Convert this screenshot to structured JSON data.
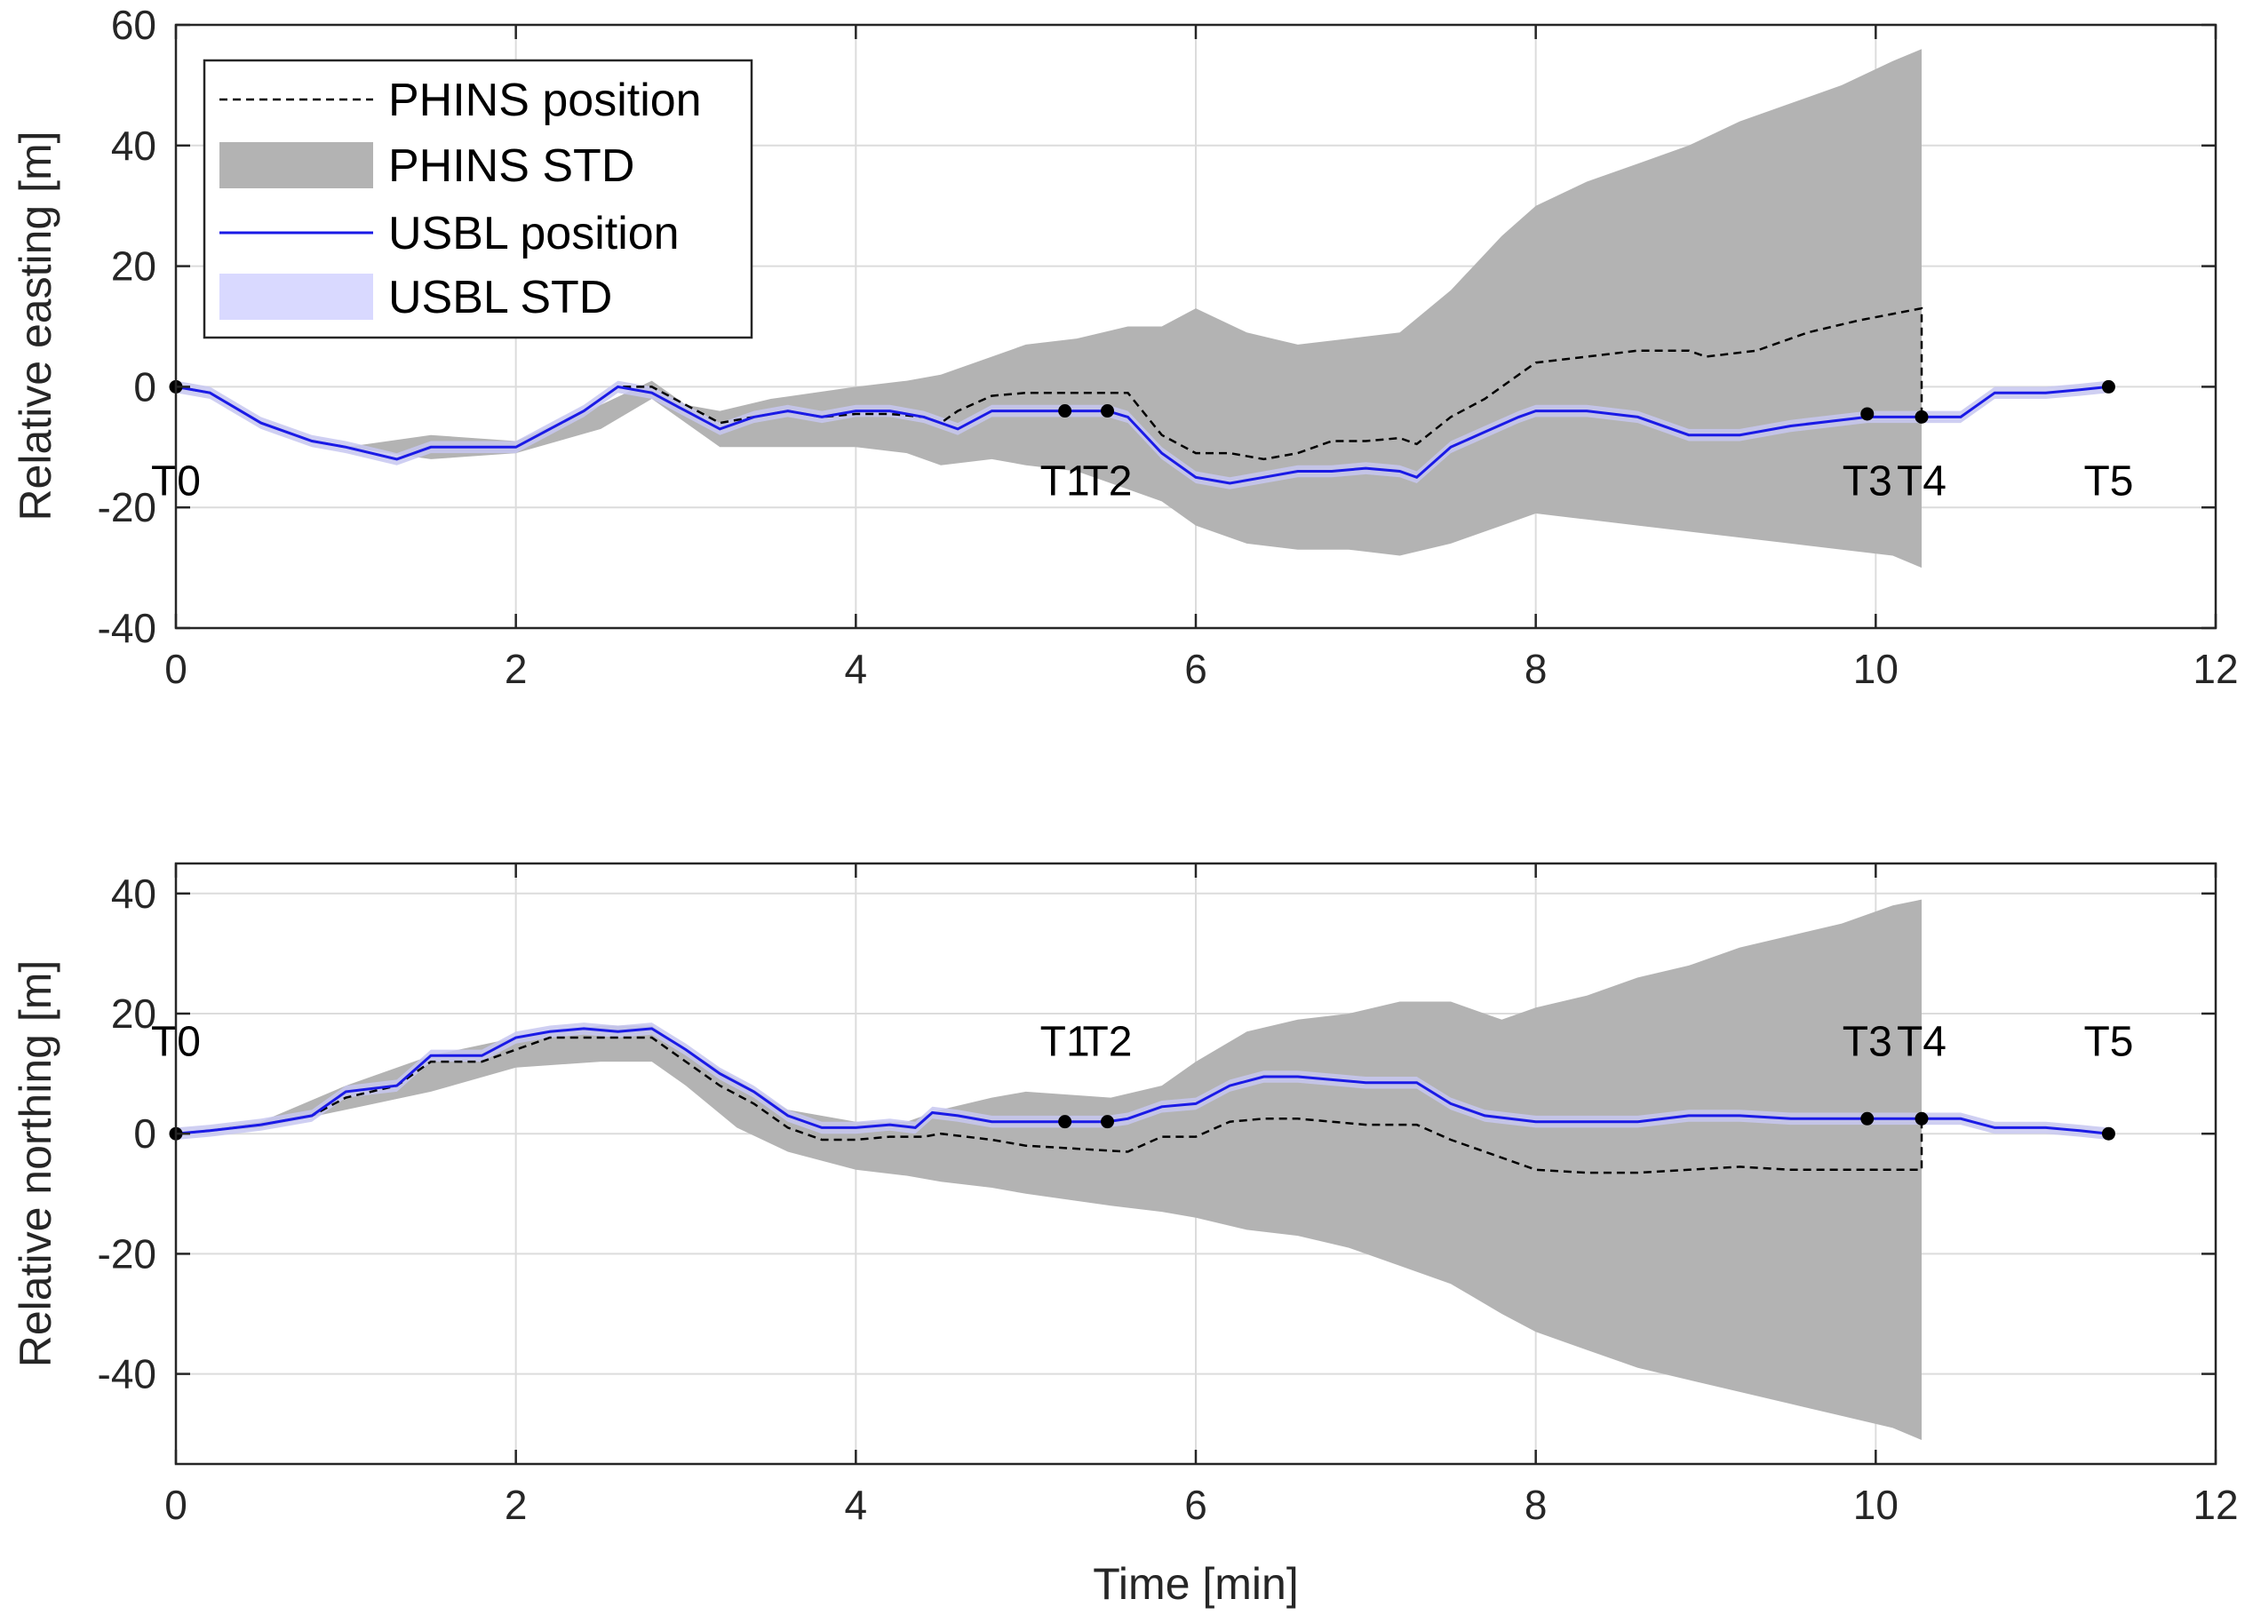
{
  "chart_data": [
    {
      "type": "line",
      "id": "easting",
      "ylabel": "Relative easting [m]",
      "xlabel": "",
      "xlim": [
        0,
        12
      ],
      "ylim": [
        -40,
        60
      ],
      "xticks": [
        0,
        2,
        4,
        6,
        8,
        10,
        12
      ],
      "yticks": [
        -40,
        -20,
        0,
        20,
        40,
        60
      ],
      "grid": true,
      "legend": {
        "position": "top-left",
        "entries": [
          {
            "label": "PHINS position",
            "style": "dashed-line",
            "color": "#000000"
          },
          {
            "label": "PHINS STD",
            "style": "band",
            "color": "#b3b3b3"
          },
          {
            "label": "USBL position",
            "style": "line",
            "color": "#1a1ae6"
          },
          {
            "label": "USBL STD",
            "style": "band",
            "color": "#d9d9ff"
          }
        ]
      },
      "series": [
        {
          "name": "PHINS position",
          "x": [
            0,
            0.2,
            0.5,
            0.8,
            1.0,
            1.3,
            1.5,
            1.8,
            2.0,
            2.2,
            2.4,
            2.6,
            2.8,
            3.0,
            3.2,
            3.4,
            3.6,
            3.8,
            4.0,
            4.2,
            4.4,
            4.5,
            4.6,
            4.8,
            5.0,
            5.2,
            5.4,
            5.6,
            5.8,
            6.0,
            6.2,
            6.4,
            6.6,
            6.8,
            7.0,
            7.2,
            7.3,
            7.5,
            7.7,
            7.9,
            8.0,
            8.3,
            8.6,
            8.9,
            9.0,
            9.3,
            9.6,
            9.9,
            10.27,
            10.27
          ],
          "y": [
            0,
            -1,
            -6,
            -9,
            -10,
            -12,
            -10,
            -10,
            -10,
            -7,
            -4,
            0,
            0,
            -3,
            -6,
            -5,
            -4,
            -5,
            -4.5,
            -4.5,
            -5,
            -6,
            -4,
            -1.5,
            -1,
            -1,
            -1,
            -1,
            -8,
            -11,
            -11,
            -12,
            -11,
            -9,
            -9,
            -8.5,
            -9.5,
            -5,
            -2,
            2,
            4,
            5,
            6,
            6,
            5,
            6,
            9,
            11,
            13,
            -5
          ]
        },
        {
          "name": "PHINS STD",
          "x": [
            0,
            0.5,
            1.0,
            1.5,
            2.0,
            2.5,
            2.8,
            3.0,
            3.2,
            3.5,
            4.0,
            4.3,
            4.5,
            4.8,
            5.0,
            5.3,
            5.6,
            5.8,
            6.0,
            6.3,
            6.6,
            6.9,
            7.2,
            7.5,
            7.8,
            8.0,
            8.3,
            8.6,
            8.9,
            9.2,
            9.5,
            9.8,
            10.1,
            10.27
          ],
          "lower": [
            0,
            -6,
            -10,
            -12,
            -11,
            -7,
            -2,
            -6,
            -10,
            -10,
            -10,
            -11,
            -13,
            -12,
            -13,
            -14,
            -17,
            -19,
            -23,
            -26,
            -27,
            -27,
            -28,
            -26,
            -23,
            -21,
            -22,
            -23,
            -24,
            -25,
            -26,
            -27,
            -28,
            -30
          ],
          "upper": [
            0,
            -6,
            -10,
            -8,
            -9,
            -3,
            1,
            -3,
            -4,
            -2,
            0,
            1,
            2,
            5,
            7,
            8,
            10,
            10,
            13,
            9,
            7,
            8,
            9,
            16,
            25,
            30,
            34,
            37,
            40,
            44,
            47,
            50,
            54,
            56
          ]
        },
        {
          "name": "USBL position",
          "x": [
            0,
            0.2,
            0.5,
            0.8,
            1.0,
            1.3,
            1.5,
            1.8,
            2.0,
            2.2,
            2.4,
            2.6,
            2.8,
            3.0,
            3.2,
            3.4,
            3.6,
            3.8,
            4.0,
            4.2,
            4.4,
            4.6,
            4.8,
            5.0,
            5.23,
            5.48,
            5.6,
            5.8,
            6.0,
            6.2,
            6.4,
            6.6,
            6.8,
            7.0,
            7.2,
            7.3,
            7.5,
            7.7,
            7.9,
            8.0,
            8.3,
            8.6,
            8.9,
            9.2,
            9.5,
            9.8,
            9.95,
            10.27,
            10.5,
            10.7,
            11.0,
            11.2,
            11.37
          ],
          "y": [
            0,
            -1,
            -6,
            -9,
            -10,
            -12,
            -10,
            -10,
            -10,
            -7,
            -4,
            0,
            -1,
            -4,
            -7,
            -5,
            -4,
            -5,
            -4,
            -4,
            -5,
            -7,
            -4,
            -4,
            -4,
            -4,
            -5,
            -11,
            -15,
            -16,
            -15,
            -14,
            -14,
            -13.5,
            -14,
            -15,
            -10,
            -7.5,
            -5,
            -4,
            -4,
            -5,
            -8,
            -8,
            -6.5,
            -5.5,
            -5,
            -5,
            -5,
            -1,
            -1,
            -0.5,
            0
          ]
        },
        {
          "name": "USBL STD",
          "halfwidth": 1.0
        }
      ],
      "events": [
        {
          "label": "T0",
          "x": 0,
          "y": 0
        },
        {
          "label": "T1",
          "x": 5.23,
          "y": -4
        },
        {
          "label": "T2",
          "x": 5.48,
          "y": -4
        },
        {
          "label": "T3",
          "x": 9.95,
          "y": -4.5
        },
        {
          "label": "T4",
          "x": 10.27,
          "y": -5
        },
        {
          "label": "T5",
          "x": 11.37,
          "y": 0
        }
      ],
      "event_label_y": -15.5
    },
    {
      "type": "line",
      "id": "northing",
      "ylabel": "Relative northing [m]",
      "xlabel": "Time [min]",
      "xlim": [
        0,
        12
      ],
      "ylim": [
        -55,
        45
      ],
      "xticks": [
        0,
        2,
        4,
        6,
        8,
        10,
        12
      ],
      "yticks": [
        -40,
        -20,
        0,
        20,
        40
      ],
      "grid": true,
      "series": [
        {
          "name": "PHINS position",
          "x": [
            0,
            0.2,
            0.5,
            0.8,
            1.0,
            1.3,
            1.5,
            1.8,
            2.0,
            2.2,
            2.4,
            2.6,
            2.8,
            3.0,
            3.2,
            3.4,
            3.6,
            3.8,
            4.0,
            4.2,
            4.4,
            4.5,
            4.8,
            5.0,
            5.3,
            5.6,
            5.8,
            6.0,
            6.2,
            6.4,
            6.6,
            6.8,
            7.0,
            7.3,
            7.5,
            7.7,
            8.0,
            8.3,
            8.6,
            8.9,
            9.2,
            9.5,
            9.8,
            10.27,
            10.27
          ],
          "y": [
            0,
            0.5,
            1.5,
            3,
            6,
            8,
            12,
            12,
            14,
            16,
            16,
            16,
            16,
            12,
            8,
            5,
            1,
            -1,
            -1,
            -0.5,
            -0.5,
            0,
            -1,
            -2,
            -2.5,
            -3,
            -0.5,
            -0.5,
            2,
            2.5,
            2.5,
            2,
            1.5,
            1.5,
            -1,
            -3,
            -6,
            -6.5,
            -6.5,
            -6,
            -5.5,
            -6,
            -6,
            -6,
            3
          ]
        },
        {
          "name": "PHINS STD",
          "x": [
            0,
            0.5,
            1.0,
            1.5,
            2.0,
            2.5,
            2.8,
            3.0,
            3.3,
            3.6,
            4.0,
            4.3,
            4.5,
            4.8,
            5.0,
            5.5,
            5.8,
            6.0,
            6.3,
            6.6,
            6.9,
            7.2,
            7.5,
            7.8,
            8.0,
            8.3,
            8.6,
            8.9,
            9.2,
            9.5,
            9.8,
            10.1,
            10.27
          ],
          "lower": [
            0,
            1,
            4,
            7,
            11,
            12,
            12,
            8,
            1,
            -3,
            -6,
            -7,
            -8,
            -9,
            -10,
            -12,
            -13,
            -14,
            -16,
            -17,
            -19,
            -22,
            -25,
            -30,
            -33,
            -36,
            -39,
            -41,
            -43,
            -45,
            -47,
            -49,
            -51
          ],
          "upper": [
            0,
            2,
            8,
            13,
            16,
            18,
            18,
            14,
            9,
            4,
            2,
            2,
            4,
            6,
            7,
            6,
            8,
            12,
            17,
            19,
            20,
            22,
            22,
            19,
            21,
            23,
            26,
            28,
            31,
            33,
            35,
            38,
            39
          ]
        },
        {
          "name": "USBL position",
          "x": [
            0,
            0.2,
            0.5,
            0.8,
            1.0,
            1.3,
            1.5,
            1.8,
            2.0,
            2.2,
            2.4,
            2.6,
            2.8,
            3.0,
            3.2,
            3.4,
            3.6,
            3.8,
            4.0,
            4.2,
            4.35,
            4.45,
            4.6,
            4.8,
            5.0,
            5.23,
            5.48,
            5.6,
            5.8,
            6.0,
            6.2,
            6.4,
            6.6,
            6.8,
            7.0,
            7.3,
            7.5,
            7.7,
            8.0,
            8.3,
            8.6,
            8.9,
            9.2,
            9.5,
            9.8,
            9.95,
            10.27,
            10.5,
            10.7,
            11.0,
            11.2,
            11.37
          ],
          "y": [
            0,
            0.5,
            1.5,
            3,
            7,
            8,
            13,
            13,
            16,
            17,
            17.5,
            17,
            17.5,
            14,
            10,
            7,
            3,
            1,
            1,
            1.5,
            1,
            3.5,
            3,
            2,
            2,
            2,
            2,
            2.5,
            4.5,
            5,
            8,
            9.5,
            9.5,
            9,
            8.5,
            8.5,
            5,
            3,
            2,
            2,
            2,
            3,
            3,
            2.5,
            2.5,
            2.5,
            2.5,
            2.5,
            1,
            1,
            0.5,
            0
          ]
        },
        {
          "name": "USBL STD",
          "halfwidth": 1.0
        }
      ],
      "events": [
        {
          "label": "T0",
          "x": 0,
          "y": 0
        },
        {
          "label": "T1",
          "x": 5.23,
          "y": 2
        },
        {
          "label": "T2",
          "x": 5.48,
          "y": 2
        },
        {
          "label": "T3",
          "x": 9.95,
          "y": 2.5
        },
        {
          "label": "T4",
          "x": 10.27,
          "y": 2.5
        },
        {
          "label": "T5",
          "x": 11.37,
          "y": 0
        }
      ],
      "event_label_y": 15.5
    }
  ]
}
